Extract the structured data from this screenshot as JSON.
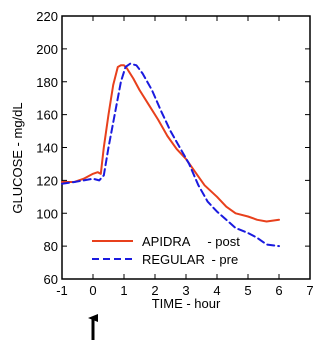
{
  "chart_data": {
    "type": "line",
    "title": "",
    "xlabel": "TIME - hour",
    "ylabel": "GLUCOSE - mg/dL",
    "xlim": [
      -1,
      7
    ],
    "ylim": [
      60,
      220
    ],
    "xticks": [
      -1,
      0,
      1,
      2,
      3,
      4,
      5,
      6,
      7
    ],
    "yticks": [
      60,
      80,
      100,
      120,
      140,
      160,
      180,
      200,
      220
    ],
    "grid": false,
    "legend": "bottom-right",
    "series": [
      {
        "name": "APIDRA",
        "legend_suffix": "- post",
        "color": "#e8401c",
        "dash": "solid",
        "x": [
          -1,
          -0.6,
          -0.3,
          0,
          0.15,
          0.25,
          0.35,
          0.5,
          0.65,
          0.8,
          0.9,
          1.0,
          1.1,
          1.3,
          1.5,
          1.8,
          2.1,
          2.4,
          2.7,
          3.0,
          3.3,
          3.6,
          4.0,
          4.3,
          4.6,
          5.0,
          5.3,
          5.6,
          6.0
        ],
        "y": [
          119,
          119,
          121,
          124,
          125,
          124,
          140,
          160,
          178,
          189,
          190,
          190,
          188,
          182,
          175,
          166,
          157,
          147,
          139,
          133,
          125,
          117,
          110,
          104,
          100,
          98,
          96,
          95,
          96
        ]
      },
      {
        "name": "REGULAR",
        "legend_suffix": "- pre",
        "color": "#1a1adf",
        "dash": "dashed",
        "x": [
          -1,
          -0.6,
          -0.3,
          0,
          0.2,
          0.35,
          0.5,
          0.7,
          0.9,
          1.05,
          1.2,
          1.4,
          1.6,
          1.9,
          2.2,
          2.5,
          2.8,
          3.1,
          3.4,
          3.7,
          4.0,
          4.3,
          4.6,
          5.0,
          5.3,
          5.6,
          6.0
        ],
        "y": [
          118,
          119,
          120,
          121,
          120,
          123,
          140,
          160,
          180,
          189,
          191,
          190,
          185,
          175,
          162,
          150,
          140,
          130,
          117,
          107,
          101,
          96,
          91,
          88,
          85,
          81,
          80
        ]
      }
    ],
    "annotation": {
      "type": "arrow",
      "x": 0,
      "direction": "up"
    }
  }
}
